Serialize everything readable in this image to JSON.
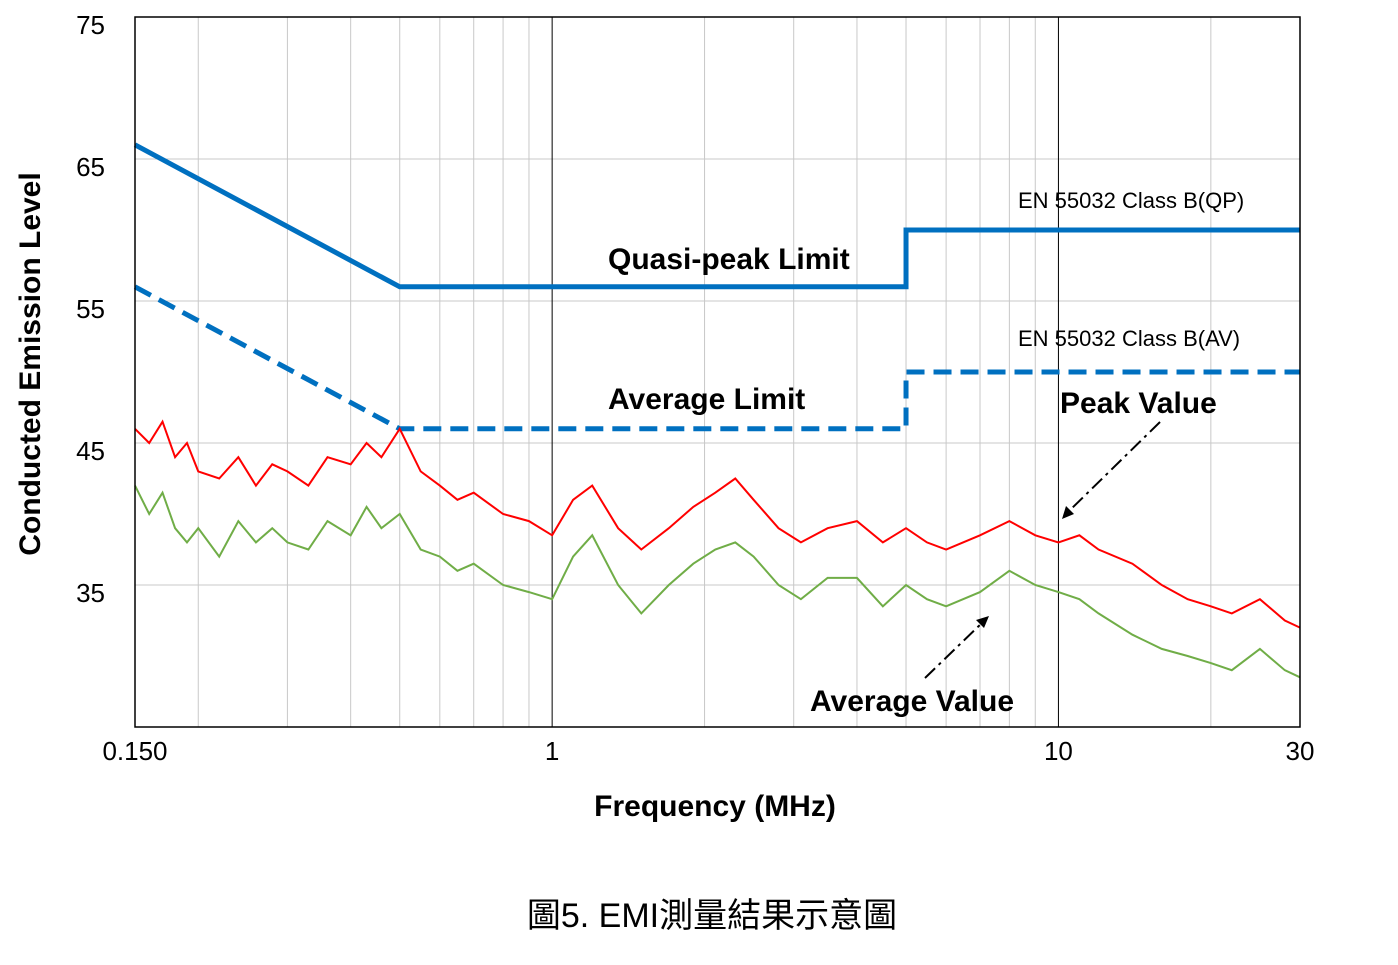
{
  "chart_data": {
    "type": "line",
    "title": "圖5. EMI測量結果示意圖",
    "x_label": "Frequency (MHz)",
    "y_label": "Conducted Emission Level",
    "log_x": true,
    "xlim": [
      0.15,
      30
    ],
    "xticks": [
      {
        "value": 0.15,
        "label": "0.150"
      },
      1,
      10,
      30
    ],
    "x_minor_grid": [
      0.2,
      0.3,
      0.4,
      0.5,
      0.6,
      0.7,
      0.8,
      0.9,
      2,
      3,
      4,
      5,
      6,
      7,
      8,
      9,
      20
    ],
    "ylim": [
      25,
      75
    ],
    "yticks": [
      35,
      45,
      55,
      65,
      75
    ],
    "grid": true,
    "annotations": [
      "EN 55032 Class B(QP)",
      "EN 55032 Class B(AV)"
    ],
    "series": [
      {
        "name": "Quasi-peak Limit",
        "color": "#0070c0",
        "dash": false,
        "x": [
          0.15,
          0.5,
          5,
          5,
          30
        ],
        "values": [
          66,
          56,
          56,
          60,
          60
        ]
      },
      {
        "name": "Average Limit",
        "color": "#0070c0",
        "dash": true,
        "x": [
          0.15,
          0.5,
          5,
          5,
          30
        ],
        "values": [
          56,
          46,
          46,
          50,
          50
        ]
      },
      {
        "name": "Peak Value",
        "color": "#ff0000",
        "dash": false,
        "x": [
          0.15,
          0.16,
          0.17,
          0.18,
          0.19,
          0.2,
          0.22,
          0.24,
          0.26,
          0.28,
          0.3,
          0.33,
          0.36,
          0.4,
          0.43,
          0.46,
          0.5,
          0.55,
          0.6,
          0.65,
          0.7,
          0.8,
          0.9,
          1,
          1.1,
          1.2,
          1.35,
          1.5,
          1.7,
          1.9,
          2.1,
          2.3,
          2.5,
          2.8,
          3.1,
          3.5,
          4,
          4.5,
          5,
          5.5,
          6,
          7,
          8,
          9,
          10,
          11,
          12,
          14,
          16,
          18,
          20,
          22,
          25,
          28,
          30
        ],
        "values": [
          46,
          45,
          46.5,
          44,
          45,
          43,
          42.5,
          44,
          42,
          43.5,
          43,
          42,
          44,
          43.5,
          45,
          44,
          46,
          43,
          42,
          41,
          41.5,
          40,
          39.5,
          38.5,
          41,
          42,
          39,
          37.5,
          39,
          40.5,
          41.5,
          42.5,
          41,
          39,
          38,
          39,
          39.5,
          38,
          39,
          38,
          37.5,
          38.5,
          39.5,
          38.5,
          38,
          38.5,
          37.5,
          36.5,
          35,
          34,
          33.5,
          33,
          34,
          32.5,
          32
        ]
      },
      {
        "name": "Average Value",
        "color": "#70ad47",
        "dash": false,
        "x": [
          0.15,
          0.16,
          0.17,
          0.18,
          0.19,
          0.2,
          0.22,
          0.24,
          0.26,
          0.28,
          0.3,
          0.33,
          0.36,
          0.4,
          0.43,
          0.46,
          0.5,
          0.55,
          0.6,
          0.65,
          0.7,
          0.8,
          0.9,
          1,
          1.1,
          1.2,
          1.35,
          1.5,
          1.7,
          1.9,
          2.1,
          2.3,
          2.5,
          2.8,
          3.1,
          3.5,
          4,
          4.5,
          5,
          5.5,
          6,
          7,
          8,
          9,
          10,
          11,
          12,
          14,
          16,
          18,
          20,
          22,
          25,
          28,
          30
        ],
        "values": [
          42,
          40,
          41.5,
          39,
          38,
          39,
          37,
          39.5,
          38,
          39,
          38,
          37.5,
          39.5,
          38.5,
          40.5,
          39,
          40,
          37.5,
          37,
          36,
          36.5,
          35,
          34.5,
          34,
          37,
          38.5,
          35,
          33,
          35,
          36.5,
          37.5,
          38,
          37,
          35,
          34,
          35.5,
          35.5,
          33.5,
          35,
          34,
          33.5,
          34.5,
          36,
          35,
          34.5,
          34,
          33,
          31.5,
          30.5,
          30,
          29.5,
          29,
          30.5,
          29,
          28.5
        ]
      }
    ]
  }
}
